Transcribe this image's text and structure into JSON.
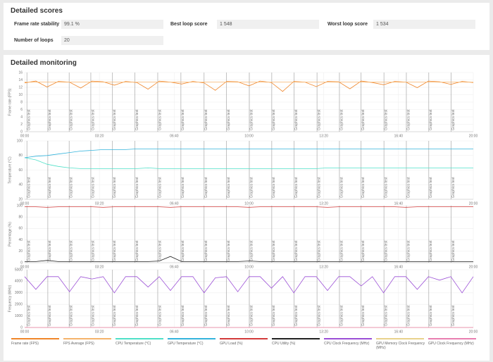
{
  "scores": {
    "title": "Detailed scores",
    "items": [
      {
        "label": "Frame rate stability",
        "value": "99.1 %"
      },
      {
        "label": "Best loop score",
        "value": "1 548"
      },
      {
        "label": "Worst loop score",
        "value": "1 534"
      },
      {
        "label": "Number of loops",
        "value": 20
      }
    ]
  },
  "monitoring": {
    "title": "Detailed monitoring"
  },
  "chart_data": [
    {
      "type": "line",
      "y_label": "Frame rate (FPS)",
      "x": [
        0,
        30,
        60,
        90,
        120,
        150,
        180,
        210,
        240,
        270,
        300,
        330,
        360,
        390,
        420,
        450,
        480,
        510,
        540,
        570,
        600,
        630,
        660,
        690,
        720,
        750,
        780,
        810,
        840,
        870,
        900,
        930,
        960,
        990,
        1020,
        1050,
        1080,
        1110,
        1140,
        1170,
        1200
      ],
      "xlim": [
        0,
        1200
      ],
      "xticks": [
        {
          "value": 0,
          "label": "00:00"
        },
        {
          "value": 200,
          "label": "03:20"
        },
        {
          "value": 400,
          "label": "06:40"
        },
        {
          "value": 600,
          "label": "10:00"
        },
        {
          "value": 800,
          "label": "13:20"
        },
        {
          "value": 1000,
          "label": "16:40"
        },
        {
          "value": 1200,
          "label": "20:00"
        }
      ],
      "ylim": [
        0,
        16
      ],
      "yticks": [
        0,
        2,
        4,
        6,
        8,
        10,
        12,
        14,
        16
      ],
      "grid": true,
      "annotations": {
        "text": "Graphics test",
        "x": [
          6,
          62,
          119,
          177,
          235,
          295,
          356,
          418,
          480,
          540,
          601,
          661,
          721,
          782,
          842,
          900,
          961,
          1021,
          1081,
          1141
        ]
      },
      "series": [
        {
          "name": "Frame rate (FPS)",
          "color": "#f0862a",
          "values": [
            13.2,
            13.7,
            12.1,
            13.6,
            13.4,
            11.8,
            13.7,
            13.5,
            12.6,
            13.6,
            13.3,
            11.5,
            13.7,
            13.4,
            12.9,
            13.6,
            13.2,
            11.2,
            13.6,
            13.5,
            12.4,
            13.7,
            13.3,
            10.9,
            13.6,
            13.4,
            12.2,
            13.6,
            13.5,
            11.6,
            13.7,
            13.3,
            12.7,
            13.6,
            13.4,
            11.9,
            13.7,
            13.5,
            12.8,
            13.6,
            13.3
          ]
        },
        {
          "name": "FPS Average (FPS)",
          "color": "#f5b36b",
          "values": [
            13.4,
            13.4,
            13.4,
            13.4,
            13.4,
            13.4,
            13.4,
            13.4,
            13.4,
            13.4,
            13.4,
            13.4,
            13.4,
            13.4,
            13.4,
            13.4,
            13.4,
            13.4,
            13.4,
            13.4,
            13.4,
            13.4,
            13.4,
            13.4,
            13.4,
            13.4,
            13.4,
            13.4,
            13.4,
            13.4,
            13.4,
            13.4,
            13.4,
            13.4,
            13.4,
            13.4,
            13.4,
            13.4,
            13.4,
            13.4,
            13.4
          ]
        }
      ]
    },
    {
      "type": "line",
      "y_label": "Temperature (°C)",
      "x": [
        0,
        30,
        60,
        90,
        120,
        150,
        180,
        210,
        240,
        270,
        300,
        330,
        360,
        390,
        420,
        450,
        480,
        510,
        540,
        570,
        600,
        630,
        660,
        690,
        720,
        750,
        780,
        810,
        840,
        870,
        900,
        930,
        960,
        990,
        1020,
        1050,
        1080,
        1110,
        1140,
        1170,
        1200
      ],
      "xlim": [
        0,
        1200
      ],
      "xticks": [
        {
          "value": 0,
          "label": "00:00"
        },
        {
          "value": 200,
          "label": "03:20"
        },
        {
          "value": 400,
          "label": "06:40"
        },
        {
          "value": 600,
          "label": "10:00"
        },
        {
          "value": 800,
          "label": "13:20"
        },
        {
          "value": 1000,
          "label": "16:40"
        },
        {
          "value": 1200,
          "label": "20:00"
        }
      ],
      "ylim": [
        20,
        100
      ],
      "yticks": [
        20,
        40,
        60,
        80,
        100
      ],
      "grid": true,
      "annotations": {
        "text": "Graphics test",
        "x": [
          6,
          62,
          119,
          177,
          235,
          295,
          356,
          418,
          480,
          540,
          601,
          661,
          721,
          782,
          842,
          900,
          961,
          1021,
          1081,
          1141
        ]
      },
      "series": [
        {
          "name": "CPU Temperature (°C)",
          "color": "#4fe0c8",
          "values": [
            77,
            74,
            68,
            65,
            63,
            62,
            62,
            62,
            62,
            62,
            62,
            63,
            62,
            62,
            62,
            62,
            62,
            62,
            62,
            62,
            62,
            62,
            62,
            62,
            62,
            62,
            62,
            63,
            63,
            63,
            63,
            63,
            63,
            63,
            63,
            63,
            63,
            63,
            63,
            63,
            63
          ]
        },
        {
          "name": "GPU Temperature (°C)",
          "color": "#34b4dc",
          "values": [
            77,
            79,
            80,
            82,
            84,
            86,
            87,
            88,
            88,
            88,
            89,
            89,
            89,
            89,
            89,
            89,
            89,
            89,
            89,
            89,
            89,
            89,
            89,
            89,
            89,
            89,
            89,
            89,
            89,
            89,
            89,
            89,
            89,
            89,
            89,
            89,
            89,
            89,
            89,
            89,
            89
          ]
        }
      ]
    },
    {
      "type": "line",
      "y_label": "Percentage (%)",
      "x": [
        0,
        30,
        60,
        90,
        120,
        150,
        180,
        210,
        240,
        270,
        300,
        330,
        360,
        390,
        420,
        450,
        480,
        510,
        540,
        570,
        600,
        630,
        660,
        690,
        720,
        750,
        780,
        810,
        840,
        870,
        900,
        930,
        960,
        990,
        1020,
        1050,
        1080,
        1110,
        1140,
        1170,
        1200
      ],
      "xlim": [
        0,
        1200
      ],
      "xticks": [
        {
          "value": 0,
          "label": "00:00"
        },
        {
          "value": 200,
          "label": "03:20"
        },
        {
          "value": 400,
          "label": "06:40"
        },
        {
          "value": 600,
          "label": "10:00"
        },
        {
          "value": 800,
          "label": "13:20"
        },
        {
          "value": 1000,
          "label": "16:40"
        },
        {
          "value": 1200,
          "label": "20:00"
        }
      ],
      "ylim": [
        0,
        100
      ],
      "yticks": [
        0,
        20,
        40,
        60,
        80,
        100
      ],
      "grid": true,
      "annotations": {
        "text": "Graphics test",
        "x": [
          6,
          62,
          119,
          177,
          235,
          295,
          356,
          418,
          480,
          540,
          601,
          661,
          721,
          782,
          842,
          900,
          961,
          1021,
          1081,
          1141
        ]
      },
      "series": [
        {
          "name": "GPU Load (%)",
          "color": "#d23a3a",
          "values": [
            98,
            98,
            97,
            98,
            98,
            98,
            98,
            97,
            98,
            98,
            98,
            98,
            98,
            97,
            98,
            98,
            98,
            98,
            98,
            98,
            97,
            98,
            98,
            98,
            98,
            98,
            98,
            97,
            98,
            98,
            98,
            98,
            98,
            98,
            97,
            98,
            98,
            98,
            98,
            98,
            98
          ]
        },
        {
          "name": "CPU Utility (%)",
          "color": "#222222",
          "values": [
            2,
            2,
            4,
            2,
            2,
            2,
            2,
            2,
            2,
            2,
            2,
            2,
            3,
            11,
            2,
            2,
            2,
            2,
            2,
            2,
            3,
            2,
            2,
            2,
            2,
            2,
            2,
            2,
            2,
            2,
            2,
            2,
            2,
            2,
            2,
            2,
            2,
            2,
            2,
            2,
            2
          ]
        }
      ]
    },
    {
      "type": "line",
      "y_label": "Frequency (MHz)",
      "x": [
        0,
        30,
        60,
        90,
        120,
        150,
        180,
        210,
        240,
        270,
        300,
        330,
        360,
        390,
        420,
        450,
        480,
        510,
        540,
        570,
        600,
        630,
        660,
        690,
        720,
        750,
        780,
        810,
        840,
        870,
        900,
        930,
        960,
        990,
        1020,
        1050,
        1080,
        1110,
        1140,
        1170,
        1200
      ],
      "xlim": [
        0,
        1200
      ],
      "xticks": [
        {
          "value": 0,
          "label": "00:00"
        },
        {
          "value": 200,
          "label": "03:20"
        },
        {
          "value": 400,
          "label": "06:40"
        },
        {
          "value": 600,
          "label": "10:00"
        },
        {
          "value": 800,
          "label": "13:20"
        },
        {
          "value": 1000,
          "label": "16:40"
        },
        {
          "value": 1200,
          "label": "20:00"
        }
      ],
      "ylim": [
        0,
        5000
      ],
      "yticks": [
        0,
        1000,
        2000,
        3000,
        4000,
        5000
      ],
      "grid": true,
      "annotations": {
        "text": "Graphics test",
        "x": [
          6,
          62,
          119,
          177,
          235,
          295,
          356,
          418,
          480,
          540,
          601,
          661,
          721,
          782,
          842,
          900,
          961,
          1021,
          1081,
          1141
        ]
      },
      "series": [
        {
          "name": "CPU Clock Frequency (MHz)",
          "color": "#9b4fd6",
          "values": [
            4400,
            3300,
            4400,
            4400,
            3100,
            4400,
            4200,
            4400,
            3000,
            4400,
            4400,
            3500,
            4400,
            3200,
            4400,
            4400,
            3000,
            4300,
            4400,
            3100,
            4400,
            4400,
            3400,
            4400,
            3000,
            4400,
            4400,
            3200,
            4400,
            4400,
            3600,
            4400,
            3000,
            4400,
            4400,
            3300,
            4400,
            4100,
            4400,
            3000,
            4400
          ]
        },
        {
          "name": "GPU Memory Clock Frequency (MHz)",
          "color": "#e8d28c",
          "values": [
            0,
            0,
            0,
            0,
            0,
            0,
            0,
            0,
            0,
            0,
            0,
            0,
            0,
            0,
            0,
            0,
            0,
            0,
            0,
            0,
            0,
            0,
            0,
            0,
            0,
            0,
            0,
            0,
            0,
            0,
            0,
            0,
            0,
            0,
            0,
            0,
            0,
            0,
            0,
            0,
            0
          ]
        },
        {
          "name": "GPU Clock Frequency (MHz)",
          "color": "#e87fb0",
          "values": [
            0,
            0,
            0,
            0,
            0,
            0,
            0,
            0,
            0,
            0,
            0,
            0,
            0,
            0,
            0,
            0,
            0,
            0,
            0,
            0,
            0,
            0,
            0,
            0,
            0,
            0,
            0,
            0,
            0,
            0,
            0,
            0,
            0,
            0,
            0,
            0,
            0,
            0,
            0,
            0,
            0
          ]
        }
      ]
    }
  ]
}
